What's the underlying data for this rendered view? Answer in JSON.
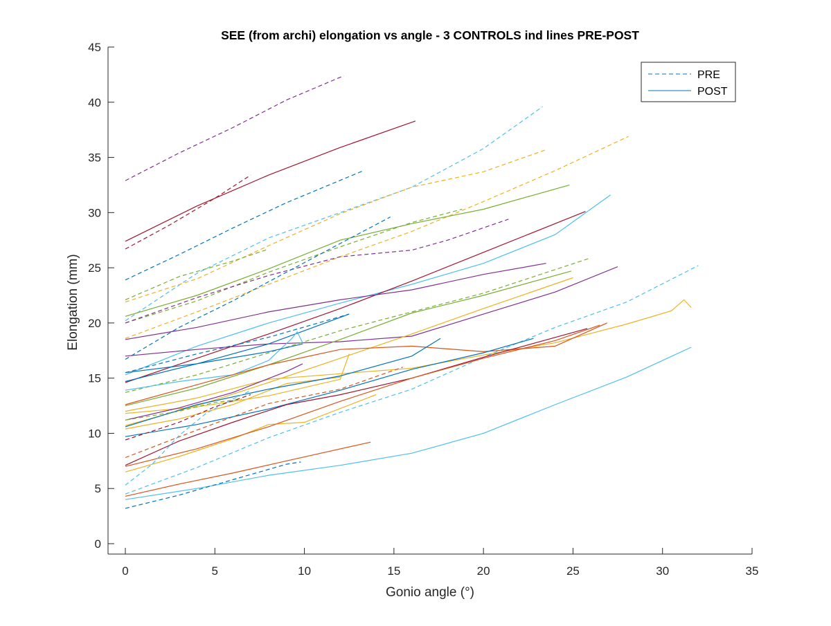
{
  "chart_data": {
    "type": "line",
    "title": "SEE (from archi) elongation vs angle - 3 CONTROLS ind lines PRE-POST",
    "xlabel": "Gonio angle (°)",
    "ylabel": "Elongation (mm)",
    "xlim": [
      0,
      35
    ],
    "ylim": [
      0,
      45
    ],
    "xticks": [
      0,
      5,
      10,
      15,
      20,
      25,
      30,
      35
    ],
    "yticks": [
      0,
      5,
      10,
      15,
      20,
      25,
      30,
      35,
      40,
      45
    ],
    "grid": false,
    "legend_position": "top-right",
    "legend": [
      {
        "label": "PRE",
        "style": "dashed",
        "color": "#0072BD"
      },
      {
        "label": "POST",
        "style": "solid",
        "color": "#0072BD"
      }
    ],
    "series": [
      {
        "color": "#7E2F8E",
        "style": "dashed",
        "points": [
          [
            0,
            32.9
          ],
          [
            3,
            35.4
          ],
          [
            6,
            37.7
          ],
          [
            9,
            40.2
          ],
          [
            12.2,
            42.4
          ]
        ]
      },
      {
        "color": "#A2142F",
        "style": "solid",
        "points": [
          [
            0,
            27.4
          ],
          [
            4,
            30.6
          ],
          [
            8,
            33.4
          ],
          [
            12,
            35.9
          ],
          [
            16.2,
            38.3
          ]
        ]
      },
      {
        "color": "#A2142F",
        "style": "dashed",
        "points": [
          [
            0,
            26.7
          ],
          [
            2.5,
            28.9
          ],
          [
            5,
            31.3
          ],
          [
            7,
            33.4
          ]
        ]
      },
      {
        "color": "#0072BD",
        "style": "dashed",
        "points": [
          [
            0,
            23.9
          ],
          [
            3,
            26.2
          ],
          [
            6,
            28.6
          ],
          [
            9,
            30.9
          ],
          [
            13.3,
            33.8
          ]
        ]
      },
      {
        "color": "#4DBEEE",
        "style": "dashed",
        "points": [
          [
            0,
            20.2
          ],
          [
            4,
            24.5
          ],
          [
            8,
            27.7
          ],
          [
            12,
            30.0
          ],
          [
            16,
            32.3
          ],
          [
            20,
            35.8
          ],
          [
            23.3,
            39.6
          ]
        ]
      },
      {
        "color": "#EDB120",
        "style": "dashed",
        "points": [
          [
            0,
            21.9
          ],
          [
            4,
            24.0
          ],
          [
            8,
            27.0
          ],
          [
            12,
            29.9
          ],
          [
            16,
            32.3
          ],
          [
            20,
            33.7
          ],
          [
            23.5,
            35.7
          ]
        ]
      },
      {
        "color": "#EDB120",
        "style": "dashed",
        "points": [
          [
            0,
            18.6
          ],
          [
            4,
            21.0
          ],
          [
            8,
            23.5
          ],
          [
            12,
            26.0
          ],
          [
            16,
            28.3
          ],
          [
            20,
            31.0
          ],
          [
            24,
            33.8
          ],
          [
            28.1,
            36.9
          ]
        ]
      },
      {
        "color": "#77AC30",
        "style": "dashed",
        "points": [
          [
            0,
            22.1
          ],
          [
            3,
            24.2
          ],
          [
            6,
            25.6
          ],
          [
            8,
            26.7
          ]
        ]
      },
      {
        "color": "#77AC30",
        "style": "dashed",
        "points": [
          [
            0,
            20.0
          ],
          [
            4,
            22.0
          ],
          [
            8,
            24.6
          ],
          [
            12,
            26.9
          ],
          [
            16,
            29.1
          ],
          [
            18.8,
            30.3
          ]
        ]
      },
      {
        "color": "#77AC30",
        "style": "solid",
        "points": [
          [
            0,
            20.6
          ],
          [
            4,
            22.5
          ],
          [
            8,
            24.9
          ],
          [
            12,
            27.5
          ],
          [
            16,
            29.0
          ],
          [
            20,
            30.3
          ],
          [
            24.8,
            32.5
          ]
        ]
      },
      {
        "color": "#7E2F8E",
        "style": "dashed",
        "points": [
          [
            0,
            20.0
          ],
          [
            4,
            22.3
          ],
          [
            8,
            24.3
          ],
          [
            12,
            26.0
          ],
          [
            16,
            26.6
          ],
          [
            18,
            27.5
          ],
          [
            21.4,
            29.4
          ]
        ]
      },
      {
        "color": "#0072BD",
        "style": "dashed",
        "points": [
          [
            0,
            16.7
          ],
          [
            3,
            19.6
          ],
          [
            6,
            22.0
          ],
          [
            9,
            24.6
          ],
          [
            12,
            27.2
          ],
          [
            14.8,
            29.6
          ]
        ]
      },
      {
        "color": "#4DBEEE",
        "style": "solid",
        "points": [
          [
            0,
            15.3
          ],
          [
            4,
            17.9
          ],
          [
            8,
            20.0
          ],
          [
            12,
            21.8
          ],
          [
            16,
            23.5
          ],
          [
            20,
            25.4
          ],
          [
            24,
            28.0
          ],
          [
            27.1,
            31.6
          ]
        ]
      },
      {
        "color": "#A2142F",
        "style": "solid",
        "points": [
          [
            0,
            14.6
          ],
          [
            4,
            16.8
          ],
          [
            8,
            19.0
          ],
          [
            12,
            21.3
          ],
          [
            16,
            23.8
          ],
          [
            20,
            26.4
          ],
          [
            25.7,
            30.1
          ]
        ]
      },
      {
        "color": "#7E2F8E",
        "style": "solid",
        "points": [
          [
            0,
            18.5
          ],
          [
            4,
            19.6
          ],
          [
            8,
            21.0
          ],
          [
            12,
            22.1
          ],
          [
            16,
            23.0
          ],
          [
            20,
            24.4
          ],
          [
            23.5,
            25.4
          ]
        ]
      },
      {
        "color": "#7E2F8E",
        "style": "solid",
        "points": [
          [
            0,
            17.0
          ],
          [
            4,
            17.6
          ],
          [
            8,
            18.1
          ],
          [
            12,
            18.3
          ],
          [
            16,
            18.8
          ],
          [
            20,
            20.8
          ],
          [
            24,
            22.8
          ],
          [
            27.5,
            25.1
          ]
        ]
      },
      {
        "color": "#77AC30",
        "style": "dashed",
        "points": [
          [
            0,
            13.7
          ],
          [
            4,
            15.3
          ],
          [
            8,
            17.3
          ],
          [
            12,
            19.3
          ],
          [
            16,
            21.0
          ],
          [
            20,
            22.7
          ],
          [
            26,
            25.9
          ]
        ]
      },
      {
        "color": "#77AC30",
        "style": "solid",
        "points": [
          [
            0,
            12.5
          ],
          [
            4,
            14.1
          ],
          [
            8,
            16.2
          ],
          [
            12,
            18.5
          ],
          [
            16,
            20.9
          ],
          [
            20,
            22.5
          ],
          [
            24.9,
            24.7
          ]
        ]
      },
      {
        "color": "#EDB120",
        "style": "solid",
        "points": [
          [
            0,
            10.7
          ],
          [
            4,
            12.5
          ],
          [
            8,
            14.6
          ],
          [
            12,
            16.8
          ],
          [
            16,
            19.0
          ],
          [
            20,
            21.3
          ],
          [
            25,
            24.1
          ]
        ]
      },
      {
        "color": "#0072BD",
        "style": "solid",
        "points": [
          [
            0,
            14.7
          ],
          [
            4,
            16.3
          ],
          [
            8,
            18.1
          ],
          [
            12.5,
            20.8
          ]
        ]
      },
      {
        "color": "#0072BD",
        "style": "dashed",
        "points": [
          [
            0,
            15.5
          ],
          [
            4,
            17.2
          ],
          [
            8,
            18.7
          ],
          [
            12.5,
            20.8
          ]
        ]
      },
      {
        "color": "#4DBEEE",
        "style": "solid",
        "points": [
          [
            0,
            13.9
          ],
          [
            3,
            14.7
          ],
          [
            6,
            15.3
          ],
          [
            8,
            16.6
          ],
          [
            9.3,
            18.6
          ],
          [
            9.6,
            19.2
          ],
          [
            9.9,
            18.2
          ]
        ]
      },
      {
        "color": "#0072BD",
        "style": "solid",
        "points": [
          [
            0,
            15.5
          ],
          [
            4,
            16.3
          ],
          [
            8,
            17.4
          ],
          [
            9.9,
            18.1
          ]
        ]
      },
      {
        "color": "#EDB120",
        "style": "solid",
        "points": [
          [
            0,
            12.0
          ],
          [
            4,
            13.2
          ],
          [
            8,
            14.9
          ],
          [
            12,
            15.4
          ],
          [
            16,
            15.9
          ],
          [
            20,
            17.1
          ],
          [
            24,
            18.2
          ],
          [
            28,
            19.9
          ],
          [
            30.5,
            21.1
          ],
          [
            31.2,
            22.1
          ],
          [
            31.6,
            21.4
          ]
        ]
      },
      {
        "color": "#D95319",
        "style": "solid",
        "points": [
          [
            0,
            12.6
          ],
          [
            4,
            14.4
          ],
          [
            8,
            16.2
          ],
          [
            12,
            17.6
          ],
          [
            16,
            17.9
          ],
          [
            20,
            17.4
          ],
          [
            24,
            17.9
          ],
          [
            26.9,
            20.0
          ]
        ]
      },
      {
        "color": "#4DBEEE",
        "style": "dashed",
        "points": [
          [
            0,
            4.5
          ],
          [
            4,
            6.9
          ],
          [
            8,
            9.6
          ],
          [
            12,
            11.9
          ],
          [
            16,
            14.0
          ],
          [
            20,
            16.9
          ],
          [
            24,
            19.6
          ],
          [
            28,
            21.9
          ],
          [
            32,
            25.2
          ]
        ]
      },
      {
        "color": "#D95319",
        "style": "dashed",
        "points": [
          [
            0,
            7.8
          ],
          [
            4,
            10.3
          ],
          [
            8,
            12.7
          ],
          [
            12,
            14.0
          ],
          [
            15.5,
            16.0
          ]
        ]
      },
      {
        "color": "#EDB120",
        "style": "solid",
        "points": [
          [
            0,
            11.8
          ],
          [
            4,
            12.4
          ],
          [
            8,
            13.4
          ],
          [
            12,
            14.9
          ],
          [
            12.5,
            17.2
          ]
        ]
      },
      {
        "color": "#EDB120",
        "style": "solid",
        "points": [
          [
            0,
            10.4
          ],
          [
            3,
            11.3
          ],
          [
            6,
            12.6
          ],
          [
            9,
            14.5
          ],
          [
            12,
            15.1
          ]
        ]
      },
      {
        "color": "#0072BD",
        "style": "solid",
        "points": [
          [
            0,
            9.7
          ],
          [
            4,
            10.8
          ],
          [
            8,
            12.2
          ],
          [
            12,
            13.9
          ],
          [
            16,
            15.8
          ],
          [
            20,
            17.3
          ],
          [
            22.8,
            18.6
          ]
        ]
      },
      {
        "color": "#0072BD",
        "style": "solid",
        "points": [
          [
            0,
            10.6
          ],
          [
            4,
            12.6
          ],
          [
            8,
            14.0
          ],
          [
            12,
            15.2
          ],
          [
            16,
            17.0
          ],
          [
            17.6,
            18.6
          ]
        ]
      },
      {
        "color": "#7E2F8E",
        "style": "solid",
        "points": [
          [
            0,
            11.2
          ],
          [
            3,
            12.3
          ],
          [
            6,
            13.7
          ],
          [
            9,
            15.6
          ],
          [
            9.9,
            16.3
          ]
        ]
      },
      {
        "color": "#A2142F",
        "style": "solid",
        "points": [
          [
            0,
            7.1
          ],
          [
            3,
            9.3
          ],
          [
            6,
            11.0
          ],
          [
            9,
            12.6
          ],
          [
            12,
            13.5
          ],
          [
            16,
            15.0
          ],
          [
            20,
            16.9
          ],
          [
            25.8,
            19.5
          ]
        ]
      },
      {
        "color": "#EDB120",
        "style": "solid",
        "points": [
          [
            0,
            6.5
          ],
          [
            3,
            7.9
          ],
          [
            6,
            9.5
          ],
          [
            8,
            10.8
          ],
          [
            10,
            11.0
          ],
          [
            14,
            13.5
          ]
        ]
      },
      {
        "color": "#D95319",
        "style": "solid",
        "points": [
          [
            0,
            7.0
          ],
          [
            4,
            8.6
          ],
          [
            8,
            10.6
          ],
          [
            12,
            12.9
          ],
          [
            16,
            15.0
          ],
          [
            20,
            16.8
          ],
          [
            24,
            18.4
          ],
          [
            26.5,
            19.8
          ]
        ]
      },
      {
        "color": "#4DBEEE",
        "style": "dashed",
        "points": [
          [
            0,
            5.3
          ],
          [
            1.5,
            7.2
          ],
          [
            3,
            9.8
          ],
          [
            4.5,
            11.8
          ],
          [
            6,
            13.1
          ],
          [
            6.9,
            13.8
          ]
        ]
      },
      {
        "color": "#77AC30",
        "style": "dashed",
        "points": [
          [
            0,
            11.2
          ],
          [
            3,
            12.0
          ],
          [
            5,
            12.8
          ],
          [
            6.5,
            13.1
          ]
        ]
      },
      {
        "color": "#A2142F",
        "style": "dashed",
        "points": [
          [
            0,
            9.4
          ],
          [
            3,
            11.0
          ],
          [
            5,
            12.4
          ],
          [
            7,
            13.5
          ]
        ]
      },
      {
        "color": "#D95319",
        "style": "solid",
        "points": [
          [
            0,
            4.3
          ],
          [
            3,
            5.4
          ],
          [
            6,
            6.4
          ],
          [
            9,
            7.5
          ],
          [
            13.7,
            9.2
          ]
        ]
      },
      {
        "color": "#4DBEEE",
        "style": "solid",
        "points": [
          [
            0,
            4.0
          ],
          [
            4,
            5.0
          ],
          [
            8,
            6.2
          ],
          [
            12,
            7.1
          ],
          [
            16,
            8.2
          ],
          [
            20,
            10.0
          ],
          [
            24,
            12.6
          ],
          [
            28,
            15.1
          ],
          [
            31.6,
            17.8
          ]
        ]
      },
      {
        "color": "#0072BD",
        "style": "dashed",
        "points": [
          [
            0,
            3.2
          ],
          [
            3,
            4.4
          ],
          [
            6,
            5.8
          ],
          [
            9,
            7.2
          ],
          [
            9.8,
            7.4
          ]
        ]
      }
    ]
  }
}
